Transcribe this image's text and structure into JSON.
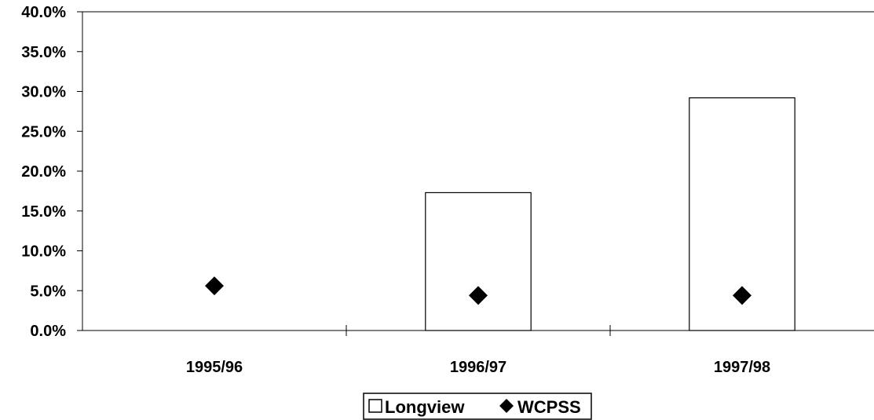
{
  "chart_data": {
    "type": "bar",
    "categories": [
      "1995/96",
      "1996/97",
      "1997/98"
    ],
    "series": [
      {
        "name": "Longview",
        "kind": "bar",
        "values": [
          0,
          17.3,
          29.2
        ],
        "fill": "#ffffff",
        "stroke": "#000000"
      },
      {
        "name": "WCPSS",
        "kind": "marker",
        "marker": "diamond",
        "values": [
          5.6,
          4.4,
          4.4
        ],
        "color": "#000000"
      }
    ],
    "ylim": [
      0,
      40
    ],
    "yticks": [
      0,
      5,
      10,
      15,
      20,
      25,
      30,
      35,
      40
    ],
    "ytick_labels": [
      "0.0%",
      "5.0%",
      "10.0%",
      "15.0%",
      "20.0%",
      "25.0%",
      "30.0%",
      "35.0%",
      "40.0%"
    ],
    "legend": {
      "position": "bottom-center",
      "entries": [
        "Longview",
        "WCPSS"
      ]
    },
    "grid": false,
    "title": "",
    "xlabel": "",
    "ylabel": ""
  }
}
